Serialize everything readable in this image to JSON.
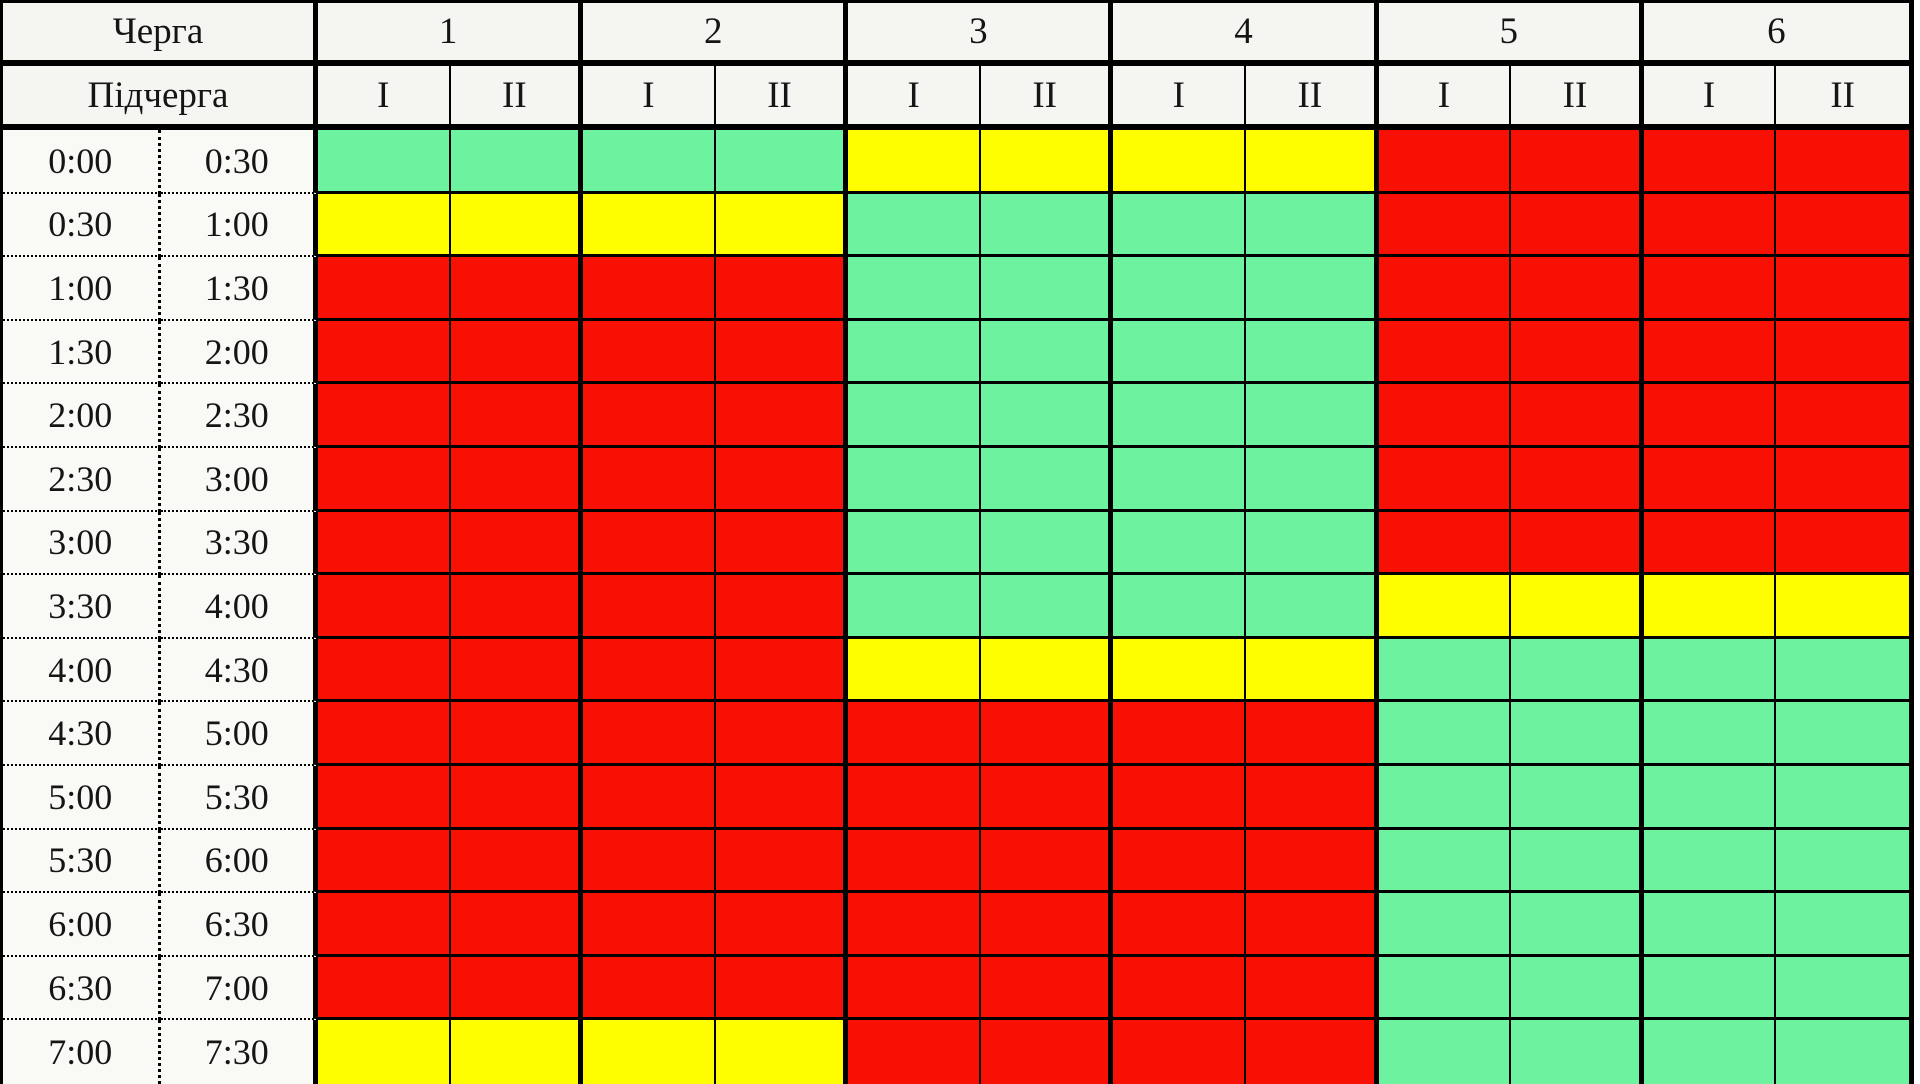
{
  "table": {
    "queue_header": "Черга",
    "subqueue_header": "Підчерга",
    "queues": [
      {
        "label": "1"
      },
      {
        "label": "2"
      },
      {
        "label": "3"
      },
      {
        "label": "4"
      },
      {
        "label": "5"
      },
      {
        "label": "6"
      }
    ],
    "subqueue_labels": [
      "I",
      "II"
    ],
    "time_rows": [
      {
        "start": "0:00",
        "end": "0:30",
        "cells": [
          "G",
          "G",
          "G",
          "G",
          "Y",
          "Y",
          "Y",
          "Y",
          "R",
          "R",
          "R",
          "R"
        ]
      },
      {
        "start": "0:30",
        "end": "1:00",
        "cells": [
          "Y",
          "Y",
          "Y",
          "Y",
          "G",
          "G",
          "G",
          "G",
          "R",
          "R",
          "R",
          "R"
        ]
      },
      {
        "start": "1:00",
        "end": "1:30",
        "cells": [
          "R",
          "R",
          "R",
          "R",
          "G",
          "G",
          "G",
          "G",
          "R",
          "R",
          "R",
          "R"
        ]
      },
      {
        "start": "1:30",
        "end": "2:00",
        "cells": [
          "R",
          "R",
          "R",
          "R",
          "G",
          "G",
          "G",
          "G",
          "R",
          "R",
          "R",
          "R"
        ]
      },
      {
        "start": "2:00",
        "end": "2:30",
        "cells": [
          "R",
          "R",
          "R",
          "R",
          "G",
          "G",
          "G",
          "G",
          "R",
          "R",
          "R",
          "R"
        ]
      },
      {
        "start": "2:30",
        "end": "3:00",
        "cells": [
          "R",
          "R",
          "R",
          "R",
          "G",
          "G",
          "G",
          "G",
          "R",
          "R",
          "R",
          "R"
        ]
      },
      {
        "start": "3:00",
        "end": "3:30",
        "cells": [
          "R",
          "R",
          "R",
          "R",
          "G",
          "G",
          "G",
          "G",
          "R",
          "R",
          "R",
          "R"
        ]
      },
      {
        "start": "3:30",
        "end": "4:00",
        "cells": [
          "R",
          "R",
          "R",
          "R",
          "G",
          "G",
          "G",
          "G",
          "Y",
          "Y",
          "Y",
          "Y"
        ]
      },
      {
        "start": "4:00",
        "end": "4:30",
        "cells": [
          "R",
          "R",
          "R",
          "R",
          "Y",
          "Y",
          "Y",
          "Y",
          "G",
          "G",
          "G",
          "G"
        ]
      },
      {
        "start": "4:30",
        "end": "5:00",
        "cells": [
          "R",
          "R",
          "R",
          "R",
          "R",
          "R",
          "R",
          "R",
          "G",
          "G",
          "G",
          "G"
        ]
      },
      {
        "start": "5:00",
        "end": "5:30",
        "cells": [
          "R",
          "R",
          "R",
          "R",
          "R",
          "R",
          "R",
          "R",
          "G",
          "G",
          "G",
          "G"
        ]
      },
      {
        "start": "5:30",
        "end": "6:00",
        "cells": [
          "R",
          "R",
          "R",
          "R",
          "R",
          "R",
          "R",
          "R",
          "G",
          "G",
          "G",
          "G"
        ]
      },
      {
        "start": "6:00",
        "end": "6:30",
        "cells": [
          "R",
          "R",
          "R",
          "R",
          "R",
          "R",
          "R",
          "R",
          "G",
          "G",
          "G",
          "G"
        ]
      },
      {
        "start": "6:30",
        "end": "7:00",
        "cells": [
          "R",
          "R",
          "R",
          "R",
          "R",
          "R",
          "R",
          "R",
          "G",
          "G",
          "G",
          "G"
        ]
      },
      {
        "start": "7:00",
        "end": "7:30",
        "cells": [
          "Y",
          "Y",
          "Y",
          "Y",
          "R",
          "R",
          "R",
          "R",
          "G",
          "G",
          "G",
          "G"
        ]
      }
    ]
  },
  "colors": {
    "G": "#6df2a0",
    "Y": "#fefe00",
    "R": "#f91004"
  },
  "chart_data": {
    "type": "heatmap",
    "title": "",
    "x_axis_label": "Черга / Підчерга",
    "y_axis_label": "",
    "x_categories": [
      "1-I",
      "1-II",
      "2-I",
      "2-II",
      "3-I",
      "3-II",
      "4-I",
      "4-II",
      "5-I",
      "5-II",
      "6-I",
      "6-II"
    ],
    "y_categories": [
      "0:00–0:30",
      "0:30–1:00",
      "1:00–1:30",
      "1:30–2:00",
      "2:00–2:30",
      "2:30–3:00",
      "3:00–3:30",
      "3:30–4:00",
      "4:00–4:30",
      "4:30–5:00",
      "5:00–5:30",
      "5:30–6:00",
      "6:00–6:30",
      "6:30–7:00",
      "7:00–7:30"
    ],
    "values": [
      [
        "green",
        "green",
        "green",
        "green",
        "yellow",
        "yellow",
        "yellow",
        "yellow",
        "red",
        "red",
        "red",
        "red"
      ],
      [
        "yellow",
        "yellow",
        "yellow",
        "yellow",
        "green",
        "green",
        "green",
        "green",
        "red",
        "red",
        "red",
        "red"
      ],
      [
        "red",
        "red",
        "red",
        "red",
        "green",
        "green",
        "green",
        "green",
        "red",
        "red",
        "red",
        "red"
      ],
      [
        "red",
        "red",
        "red",
        "red",
        "green",
        "green",
        "green",
        "green",
        "red",
        "red",
        "red",
        "red"
      ],
      [
        "red",
        "red",
        "red",
        "red",
        "green",
        "green",
        "green",
        "green",
        "red",
        "red",
        "red",
        "red"
      ],
      [
        "red",
        "red",
        "red",
        "red",
        "green",
        "green",
        "green",
        "green",
        "red",
        "red",
        "red",
        "red"
      ],
      [
        "red",
        "red",
        "red",
        "red",
        "green",
        "green",
        "green",
        "green",
        "red",
        "red",
        "red",
        "red"
      ],
      [
        "red",
        "red",
        "red",
        "red",
        "green",
        "green",
        "green",
        "green",
        "yellow",
        "yellow",
        "yellow",
        "yellow"
      ],
      [
        "red",
        "red",
        "red",
        "red",
        "yellow",
        "yellow",
        "yellow",
        "yellow",
        "green",
        "green",
        "green",
        "green"
      ],
      [
        "red",
        "red",
        "red",
        "red",
        "red",
        "red",
        "red",
        "red",
        "green",
        "green",
        "green",
        "green"
      ],
      [
        "red",
        "red",
        "red",
        "red",
        "red",
        "red",
        "red",
        "red",
        "green",
        "green",
        "green",
        "green"
      ],
      [
        "red",
        "red",
        "red",
        "red",
        "red",
        "red",
        "red",
        "red",
        "green",
        "green",
        "green",
        "green"
      ],
      [
        "red",
        "red",
        "red",
        "red",
        "red",
        "red",
        "red",
        "red",
        "green",
        "green",
        "green",
        "green"
      ],
      [
        "red",
        "red",
        "red",
        "red",
        "red",
        "red",
        "red",
        "red",
        "green",
        "green",
        "green",
        "green"
      ],
      [
        "yellow",
        "yellow",
        "yellow",
        "yellow",
        "red",
        "red",
        "red",
        "red",
        "green",
        "green",
        "green",
        "green"
      ]
    ],
    "legend": {
      "green": "#6df2a0",
      "yellow": "#fefe00",
      "red": "#f91004"
    },
    "grid": true,
    "layout": "rows are 30-minute intervals, columns are queue/subqueue pairs"
  }
}
